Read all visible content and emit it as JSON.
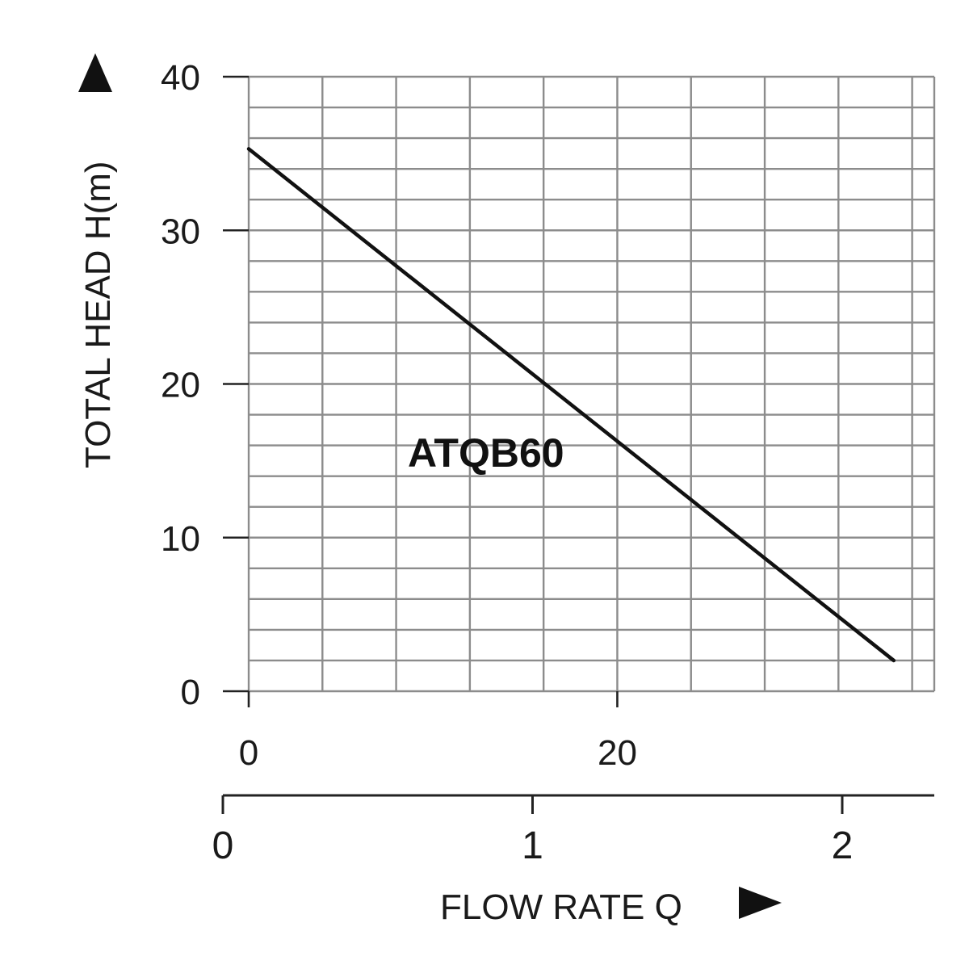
{
  "chart_data": {
    "type": "line",
    "title": "",
    "ylabel": "TOTAL HEAD H(m)",
    "xlabel": "FLOW RATE Q",
    "ylim": [
      0,
      40
    ],
    "y_ticks": [
      0,
      10,
      20,
      30,
      40
    ],
    "x_upper_axis": {
      "range": [
        0,
        37.2
      ],
      "ticks": [
        0,
        20
      ]
    },
    "x_lower_axis": {
      "range": [
        0,
        2.4
      ],
      "ticks": [
        0,
        1,
        2
      ]
    },
    "grid": true,
    "series": [
      {
        "name": "ATQB60",
        "x": [
          0,
          35
        ],
        "y": [
          35.3,
          2
        ]
      }
    ],
    "colors": {
      "grid": "#8c8c8c",
      "line": "#111111",
      "text": "#1a1a1a"
    }
  }
}
